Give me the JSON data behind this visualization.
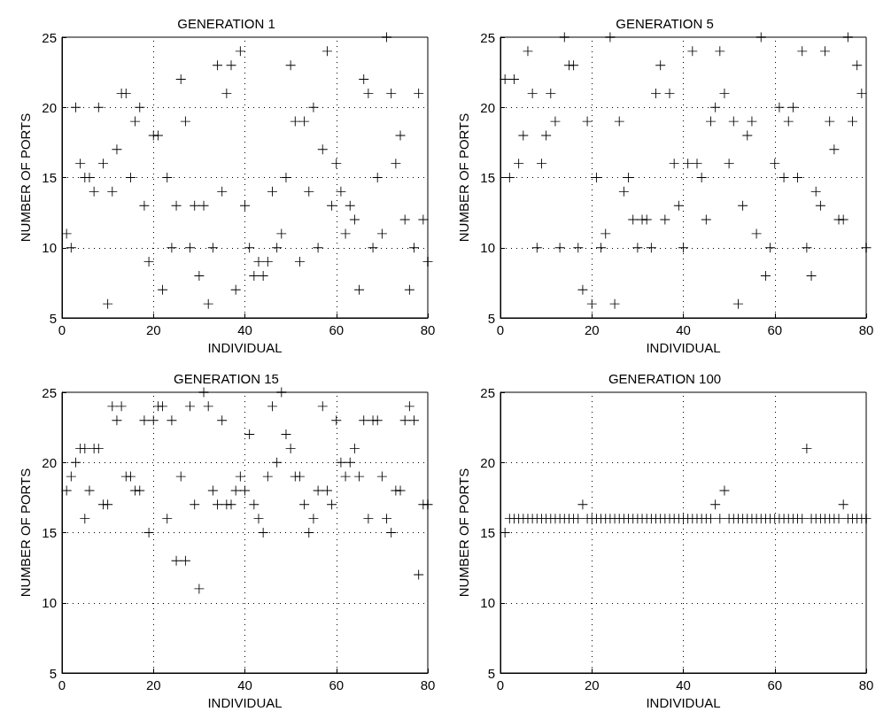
{
  "chart_data": [
    {
      "type": "scatter",
      "title": "GENERATION 1",
      "xlabel": "INDIVIDUAL",
      "ylabel": "NUMBER OF PORTS",
      "color": "#000000",
      "marker": "cross",
      "grid": true,
      "xlim": [
        0,
        80
      ],
      "xticks": [
        0,
        20,
        40,
        60,
        80
      ],
      "ylim": [
        5,
        25
      ],
      "yticks": [
        5,
        10,
        15,
        20,
        25
      ],
      "x": [
        1,
        2,
        3,
        4,
        5,
        6,
        7,
        8,
        9,
        10,
        11,
        12,
        13,
        14,
        15,
        16,
        17,
        18,
        19,
        20,
        21,
        22,
        23,
        24,
        25,
        26,
        27,
        28,
        29,
        30,
        31,
        32,
        33,
        34,
        35,
        36,
        37,
        38,
        39,
        40,
        41,
        42,
        43,
        44,
        45,
        46,
        47,
        48,
        49,
        50,
        51,
        52,
        53,
        54,
        55,
        56,
        57,
        58,
        59,
        60,
        61,
        62,
        63,
        64,
        65,
        66,
        67,
        68,
        69,
        70,
        71,
        72,
        73,
        74,
        75,
        76,
        77,
        78,
        79,
        80
      ],
      "values": [
        11,
        10,
        20,
        16,
        15,
        15,
        14,
        20,
        16,
        6,
        14,
        17,
        21,
        21,
        15,
        19,
        20,
        13,
        9,
        18,
        18,
        7,
        15,
        10,
        13,
        22,
        19,
        10,
        13,
        8,
        13,
        6,
        10,
        23,
        14,
        21,
        23,
        7,
        24,
        13,
        10,
        8,
        9,
        8,
        9,
        14,
        10,
        11,
        15,
        23,
        19,
        9,
        19,
        14,
        20,
        10,
        17,
        24,
        13,
        16,
        14,
        11,
        13,
        12,
        7,
        22,
        21,
        10,
        15,
        11,
        25,
        21,
        16,
        18,
        12,
        7,
        10,
        21,
        12,
        9
      ]
    },
    {
      "type": "scatter",
      "title": "GENERATION 5",
      "xlabel": "INDIVIDUAL",
      "ylabel": "NUMBER OF PORTS",
      "color": "#000000",
      "marker": "cross",
      "grid": true,
      "xlim": [
        0,
        80
      ],
      "xticks": [
        0,
        20,
        40,
        60,
        80
      ],
      "ylim": [
        5,
        25
      ],
      "yticks": [
        5,
        10,
        15,
        20,
        25
      ],
      "x": [
        1,
        2,
        3,
        4,
        5,
        6,
        7,
        8,
        9,
        10,
        11,
        12,
        13,
        14,
        15,
        16,
        17,
        18,
        19,
        20,
        21,
        22,
        23,
        24,
        25,
        26,
        27,
        28,
        29,
        30,
        31,
        32,
        33,
        34,
        35,
        36,
        37,
        38,
        39,
        40,
        41,
        42,
        43,
        44,
        45,
        46,
        47,
        48,
        49,
        50,
        51,
        52,
        53,
        54,
        55,
        56,
        57,
        58,
        59,
        60,
        61,
        62,
        63,
        64,
        65,
        66,
        67,
        68,
        69,
        70,
        71,
        72,
        73,
        74,
        75,
        76,
        77,
        78,
        79,
        80
      ],
      "values": [
        22,
        15,
        22,
        16,
        18,
        24,
        21,
        10,
        16,
        18,
        21,
        19,
        10,
        25,
        23,
        23,
        10,
        7,
        19,
        6,
        15,
        10,
        11,
        25,
        6,
        19,
        14,
        15,
        12,
        10,
        12,
        12,
        10,
        21,
        23,
        12,
        21,
        16,
        13,
        10,
        16,
        24,
        16,
        15,
        12,
        19,
        20,
        24,
        21,
        16,
        19,
        6,
        13,
        18,
        19,
        11,
        25,
        8,
        10,
        16,
        20,
        15,
        19,
        20,
        15,
        24,
        10,
        8,
        14,
        13,
        24,
        19,
        17,
        12,
        12,
        25,
        19,
        23,
        21,
        10
      ]
    },
    {
      "type": "scatter",
      "title": "GENERATION 15",
      "xlabel": "INDIVIDUAL",
      "ylabel": "NUMBER OF PORTS",
      "color": "#000000",
      "marker": "cross",
      "grid": true,
      "xlim": [
        0,
        80
      ],
      "xticks": [
        0,
        20,
        40,
        60,
        80
      ],
      "ylim": [
        5,
        25
      ],
      "yticks": [
        5,
        10,
        15,
        20,
        25
      ],
      "x": [
        1,
        2,
        3,
        4,
        5,
        5,
        6,
        7,
        8,
        9,
        10,
        11,
        12,
        13,
        14,
        15,
        16,
        17,
        18,
        19,
        20,
        21,
        22,
        23,
        24,
        25,
        26,
        27,
        28,
        29,
        30,
        31,
        32,
        33,
        34,
        35,
        36,
        37,
        38,
        39,
        40,
        41,
        42,
        43,
        44,
        45,
        46,
        47,
        48,
        49,
        50,
        51,
        52,
        53,
        54,
        55,
        56,
        57,
        58,
        59,
        60,
        61,
        62,
        63,
        64,
        65,
        66,
        67,
        68,
        69,
        70,
        71,
        72,
        73,
        74,
        75,
        76,
        77,
        78,
        79,
        80
      ],
      "values": [
        18,
        19,
        20,
        21,
        21,
        16,
        18,
        21,
        21,
        17,
        17,
        24,
        23,
        24,
        19,
        19,
        18,
        18,
        23,
        15,
        23,
        24,
        24,
        16,
        23,
        13,
        19,
        13,
        24,
        17,
        11,
        25,
        24,
        18,
        17,
        23,
        17,
        17,
        18,
        19,
        18,
        22,
        17,
        16,
        15,
        19,
        24,
        20,
        25,
        22,
        21,
        19,
        19,
        17,
        15,
        16,
        18,
        24,
        18,
        17,
        23,
        20,
        19,
        20,
        21,
        19,
        23,
        16,
        23,
        23,
        19,
        16,
        15,
        18,
        18,
        23,
        24,
        23,
        12,
        17,
        17
      ]
    },
    {
      "type": "scatter",
      "title": "GENERATION 100",
      "xlabel": "INDIVIDUAL",
      "ylabel": "NUMBER OF PORTS",
      "color": "#000000",
      "marker": "cross",
      "grid": true,
      "xlim": [
        0,
        80
      ],
      "xticks": [
        0,
        20,
        40,
        60,
        80
      ],
      "ylim": [
        5,
        25
      ],
      "yticks": [
        5,
        10,
        15,
        20,
        25
      ],
      "x": [
        1,
        2,
        3,
        4,
        5,
        6,
        7,
        8,
        9,
        10,
        11,
        12,
        13,
        14,
        15,
        16,
        17,
        18,
        19,
        20,
        21,
        22,
        23,
        24,
        25,
        26,
        27,
        28,
        29,
        30,
        31,
        32,
        33,
        34,
        35,
        36,
        37,
        38,
        39,
        40,
        41,
        42,
        43,
        44,
        45,
        46,
        47,
        48,
        49,
        50,
        51,
        52,
        53,
        54,
        55,
        56,
        57,
        58,
        59,
        60,
        61,
        62,
        63,
        64,
        65,
        66,
        67,
        68,
        69,
        70,
        71,
        72,
        73,
        74,
        75,
        76,
        77,
        78,
        79,
        80
      ],
      "values": [
        15,
        16,
        16,
        16,
        16,
        16,
        16,
        16,
        16,
        16,
        16,
        16,
        16,
        16,
        16,
        16,
        16,
        17,
        16,
        16,
        16,
        16,
        16,
        16,
        16,
        16,
        16,
        16,
        16,
        16,
        16,
        16,
        16,
        16,
        16,
        16,
        16,
        16,
        16,
        16,
        16,
        16,
        16,
        16,
        16,
        16,
        17,
        16,
        18,
        16,
        16,
        16,
        16,
        16,
        16,
        16,
        16,
        16,
        16,
        16,
        16,
        16,
        16,
        16,
        16,
        16,
        21,
        16,
        16,
        16,
        16,
        16,
        16,
        16,
        17,
        16,
        16,
        16,
        16,
        16
      ]
    }
  ]
}
